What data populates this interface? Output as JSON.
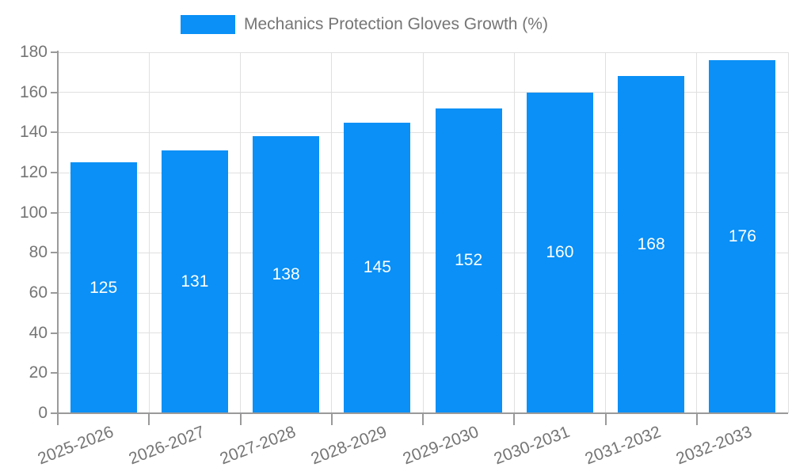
{
  "chart_data": {
    "type": "bar",
    "title": "",
    "legend": {
      "label": "Mechanics Protection Gloves Growth (%)",
      "position": "top-center"
    },
    "categories": [
      "2025-2026",
      "2026-2027",
      "2027-2028",
      "2028-2029",
      "2029-2030",
      "2030-2031",
      "2031-2032",
      "2032-2033"
    ],
    "values": [
      125,
      131,
      138,
      145,
      152,
      160,
      168,
      176
    ],
    "value_labels": [
      "125",
      "131",
      "138",
      "145",
      "152",
      "160",
      "168",
      "176"
    ],
    "xlabel": "",
    "ylabel": "",
    "ylim": [
      0,
      180
    ],
    "yticks": [
      0,
      20,
      40,
      60,
      80,
      100,
      120,
      140,
      160,
      180
    ],
    "grid": "both",
    "legend_visible": true,
    "colors": {
      "bar": "#0a90f6",
      "value_label_text": "#ffffff",
      "grid": "#e0e0e0",
      "axis": "#9a9a9a",
      "tick_text": "#757575",
      "legend_text": "#757575",
      "background": "#ffffff"
    }
  }
}
